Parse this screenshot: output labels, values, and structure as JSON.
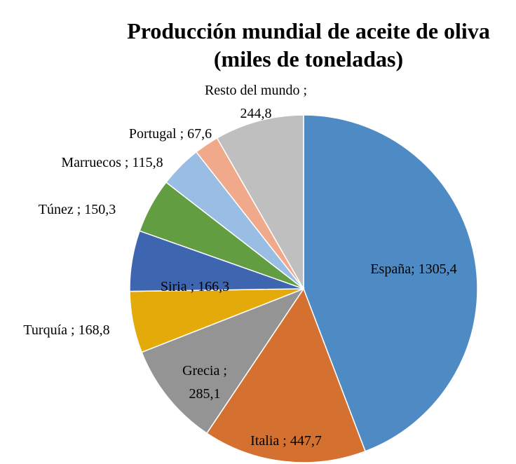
{
  "chart_data": {
    "type": "pie",
    "title": [
      "Producción mundial de aceite de oliva",
      "(miles de toneladas)"
    ],
    "values": [
      1305.4,
      447.7,
      285.1,
      168.8,
      166.3,
      150.3,
      115.8,
      67.6,
      244.8
    ],
    "value_labels": [
      [
        "España; 1305,4"
      ],
      [
        "Italia ; 447,7"
      ],
      [
        "Grecia ;",
        "285,1"
      ],
      [
        "Turquía ; 168,8"
      ],
      [
        "Siria ; 166,3"
      ],
      [
        "Túnez ; 150,3"
      ],
      [
        "Marruecos ; 115,8"
      ],
      [
        "Portugal ; 67,6"
      ],
      [
        "Resto del mundo ;",
        "244,8"
      ]
    ],
    "colors": [
      "#4e8ac4",
      "#d47130",
      "#949494",
      "#e3aa09",
      "#3e66b0",
      "#629e41",
      "#99bde3",
      "#f0a98a",
      "#bfbfbf"
    ]
  }
}
